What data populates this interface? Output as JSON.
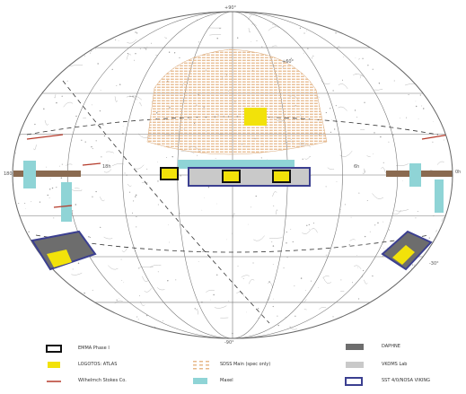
{
  "diagram": {
    "colors": {
      "background": "#ffffff",
      "grid": "#777777",
      "star_chart": "#9a9a9a",
      "sdss_dots": "#e7b88a",
      "yellow": "#f2e20a",
      "cyan": "#8fd4d6",
      "dark_gray": "#6d6d6d",
      "light_gray": "#c9c9c9",
      "navy": "#3b3f90",
      "red": "#b53a2a",
      "black": "#111111",
      "stripe_brown": "#8a6a50"
    },
    "axis_labels": {
      "top": "+90°",
      "bottom": "-90°",
      "left": "180",
      "right": "0h",
      "upper_right_curve": "+60°",
      "right_lower": "-30°",
      "left_mid": "18h",
      "right_mid": "6h"
    },
    "legend": {
      "items": [
        {
          "symbol": "box-black",
          "label": "EMMA Phase I"
        },
        {
          "symbol": "fill-yellow",
          "label": "LOGOTOS: ATLAS"
        },
        {
          "symbol": "line-red",
          "label": "Wilhelmch Stokes Co."
        },
        {
          "symbol": "dots-orange",
          "label": "SDSS Main (spec only)"
        },
        {
          "symbol": "fill-cyan",
          "label": "Maxel"
        },
        {
          "symbol": "fill-darkgray",
          "label": "DAPHNE"
        },
        {
          "symbol": "fill-lightgray",
          "label": "VKOMS Lab"
        },
        {
          "symbol": "box-navy",
          "label": "SST 4/0/NOSA VIKING"
        }
      ]
    }
  }
}
